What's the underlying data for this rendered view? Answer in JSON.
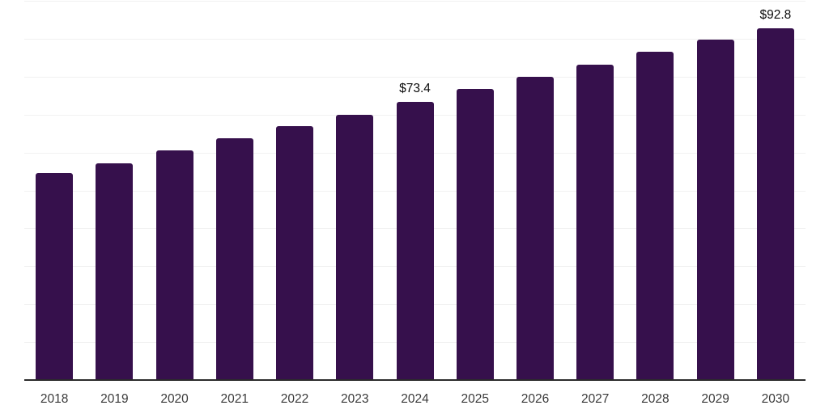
{
  "chart_data": {
    "type": "bar",
    "categories": [
      "2018",
      "2019",
      "2020",
      "2021",
      "2022",
      "2023",
      "2024",
      "2025",
      "2026",
      "2027",
      "2028",
      "2029",
      "2030"
    ],
    "values": [
      54.6,
      57.2,
      60.6,
      63.8,
      67.0,
      70.0,
      73.4,
      76.8,
      80.0,
      83.2,
      86.6,
      89.8,
      92.8
    ],
    "data_labels": [
      {
        "category": "2024",
        "text": "$73.4"
      },
      {
        "category": "2030",
        "text": "$92.8"
      }
    ],
    "title": "",
    "xlabel": "",
    "ylabel": "",
    "ylim": [
      0,
      100
    ],
    "gridline_step": 10,
    "grid": true,
    "y_tick_labels_visible": false,
    "legend": "none",
    "colors": {
      "bar": "#36104c",
      "gridline": "#f1f1f1",
      "axis": "#2b2b2b",
      "tick_label": "#3a3a3a",
      "data_label": "#0b0b0b",
      "background": "#ffffff"
    }
  }
}
